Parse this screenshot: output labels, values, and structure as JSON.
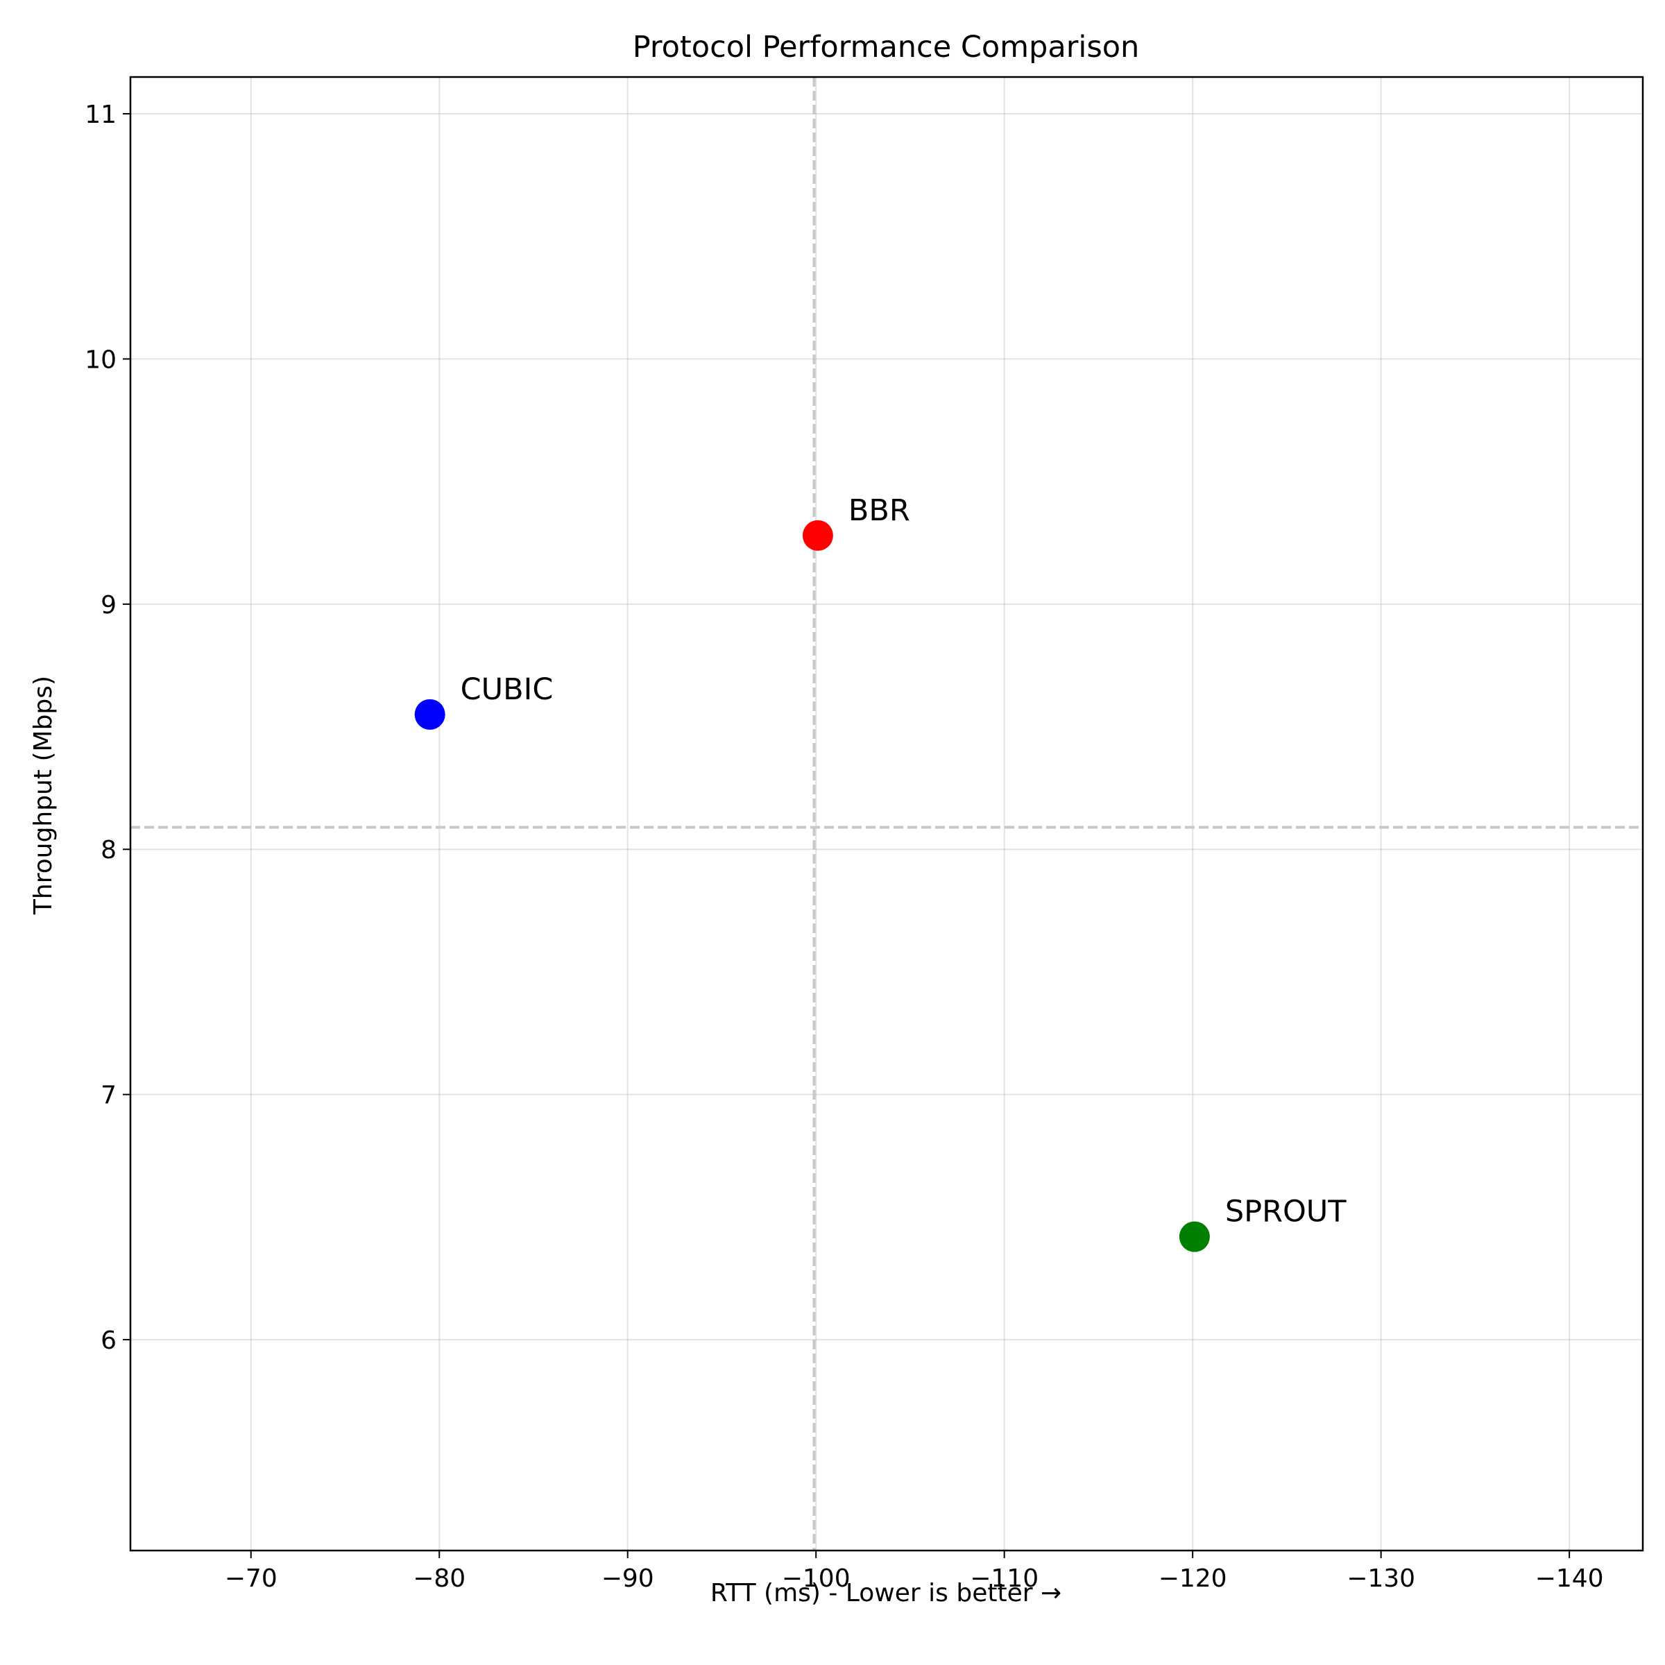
{
  "chart_data": {
    "type": "scatter",
    "title": "Protocol Performance Comparison",
    "xlabel": "RTT (ms) - Lower is better →",
    "ylabel": "Throughput (Mbps)",
    "xlim": [
      -63.6,
      -143.9
    ],
    "ylim": [
      5.14,
      11.15
    ],
    "x_ticks": [
      -70,
      -80,
      -90,
      -100,
      -110,
      -120,
      -130,
      -140
    ],
    "x_tick_labels": [
      "−70",
      "−80",
      "−90",
      "−100",
      "−110",
      "−120",
      "−130",
      "−140"
    ],
    "y_ticks": [
      6,
      7,
      8,
      9,
      10,
      11
    ],
    "y_tick_labels": [
      "6",
      "7",
      "8",
      "9",
      "10",
      "11"
    ],
    "grid": true,
    "reference_lines": {
      "x": -99.9,
      "y": 8.09
    },
    "points": [
      {
        "label": "CUBIC",
        "x": -79.5,
        "y": 8.55,
        "color": "#0000ff"
      },
      {
        "label": "BBR",
        "x": -100.1,
        "y": 9.28,
        "color": "#ff0000"
      },
      {
        "label": "SPROUT",
        "x": -120.1,
        "y": 6.42,
        "color": "#008000"
      }
    ]
  }
}
